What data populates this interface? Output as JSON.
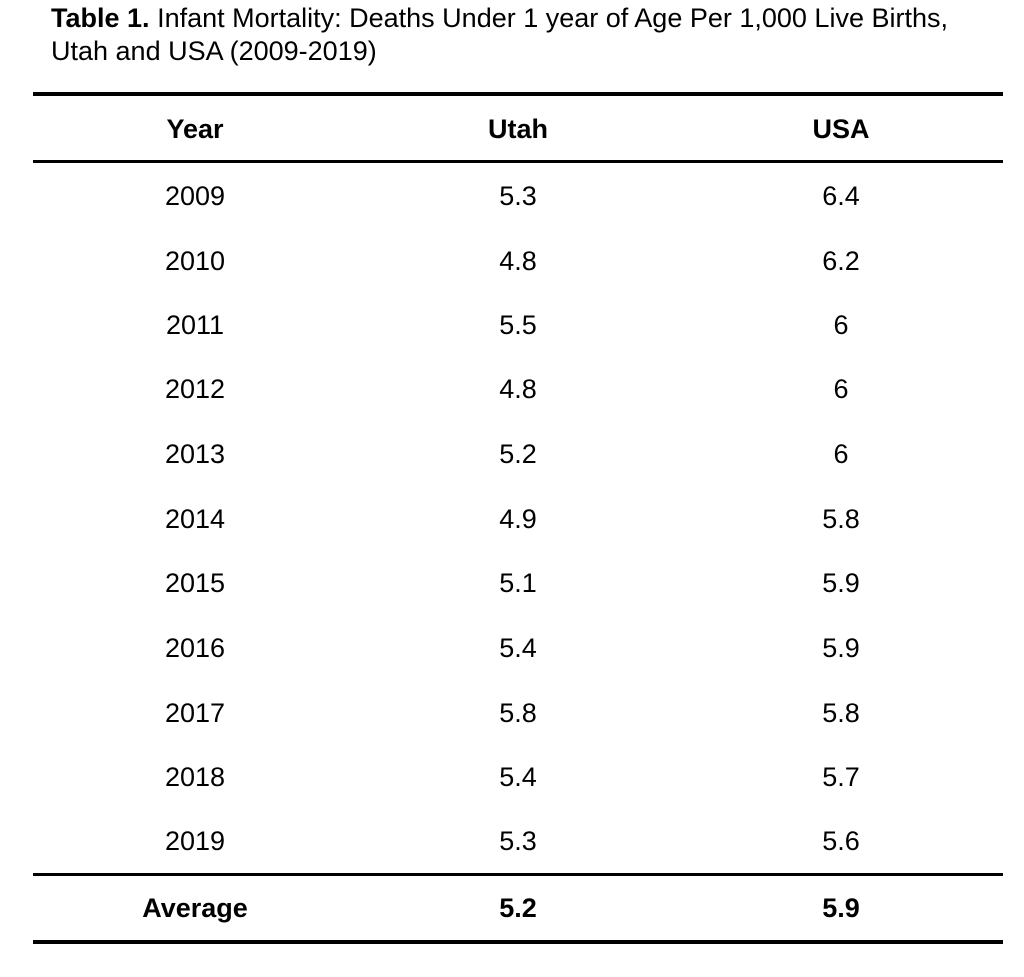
{
  "caption": {
    "label": "Table 1.",
    "text": "Infant Mortality: Deaths Under 1 year of Age Per 1,000 Live Births, Utah and USA (2009-2019)"
  },
  "table": {
    "columns": [
      "Year",
      "Utah",
      "USA"
    ],
    "rows": [
      {
        "year": "2009",
        "utah": "5.3",
        "usa": "6.4"
      },
      {
        "year": "2010",
        "utah": "4.8",
        "usa": "6.2"
      },
      {
        "year": "2011",
        "utah": "5.5",
        "usa": "6"
      },
      {
        "year": "2012",
        "utah": "4.8",
        "usa": "6"
      },
      {
        "year": "2013",
        "utah": "5.2",
        "usa": "6"
      },
      {
        "year": "2014",
        "utah": "4.9",
        "usa": "5.8"
      },
      {
        "year": "2015",
        "utah": "5.1",
        "usa": "5.9"
      },
      {
        "year": "2016",
        "utah": "5.4",
        "usa": "5.9"
      },
      {
        "year": "2017",
        "utah": "5.8",
        "usa": "5.8"
      },
      {
        "year": "2018",
        "utah": "5.4",
        "usa": "5.7"
      },
      {
        "year": "2019",
        "utah": "5.3",
        "usa": "5.6"
      }
    ],
    "footer": {
      "label": "Average",
      "utah": "5.2",
      "usa": "5.9"
    }
  }
}
